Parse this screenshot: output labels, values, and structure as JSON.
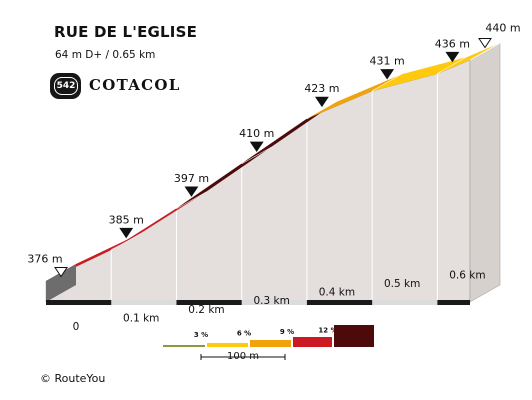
{
  "header": {
    "title": "RUE DE L'EGLISE",
    "subtitle": "64 m D+ / 0.65 km",
    "badge_number": "542",
    "brand": "COTACOL"
  },
  "chart_data": {
    "type": "area",
    "x_unit": "km",
    "y_unit": "m",
    "x_ticks": [
      "0",
      "0.1 km",
      "0.2 km",
      "0.3 km",
      "0.4 km",
      "0.5 km",
      "0.6 km"
    ],
    "x_tick_values": [
      0,
      0.1,
      0.2,
      0.3,
      0.4,
      0.5,
      0.6
    ],
    "xlim": [
      0,
      0.65
    ],
    "ylim": [
      370,
      445
    ],
    "segments": [
      {
        "x_start": 0.0,
        "x_end": 0.1,
        "alt_start": 376,
        "alt_end": 385,
        "color": "#cc1a22"
      },
      {
        "x_start": 0.1,
        "x_end": 0.2,
        "alt_start": 385,
        "alt_end": 397,
        "color": "#cc1a22"
      },
      {
        "x_start": 0.2,
        "x_end": 0.3,
        "alt_start": 397,
        "alt_end": 410,
        "color": "#4d0a0a"
      },
      {
        "x_start": 0.3,
        "x_end": 0.4,
        "alt_start": 410,
        "alt_end": 423,
        "color": "#4d0a0a"
      },
      {
        "x_start": 0.4,
        "x_end": 0.5,
        "alt_start": 423,
        "alt_end": 431,
        "color": "#f0a30a"
      },
      {
        "x_start": 0.5,
        "x_end": 0.6,
        "alt_start": 431,
        "alt_end": 436,
        "color": "#ffc90e"
      },
      {
        "x_start": 0.6,
        "x_end": 0.65,
        "alt_start": 436,
        "alt_end": 440,
        "color": "#ffc90e"
      }
    ],
    "altitude_markers": [
      {
        "x": 0.0,
        "label": "376 m",
        "marker": "start"
      },
      {
        "x": 0.1,
        "label": "385 m",
        "marker": "filled"
      },
      {
        "x": 0.2,
        "label": "397 m",
        "marker": "filled"
      },
      {
        "x": 0.3,
        "label": "410 m",
        "marker": "filled"
      },
      {
        "x": 0.4,
        "label": "423 m",
        "marker": "filled"
      },
      {
        "x": 0.5,
        "label": "431 m",
        "marker": "filled"
      },
      {
        "x": 0.6,
        "label": "436 m",
        "marker": "filled"
      },
      {
        "x": 0.65,
        "label": "440 m",
        "marker": "end"
      }
    ],
    "legend": {
      "gradient_labels": [
        "3 %",
        "6 %",
        "9 %",
        "12 %"
      ],
      "scale_label": "100 m",
      "colors": [
        "#8a9a3a",
        "#ffc90e",
        "#f0a30a",
        "#cc1a22",
        "#4d0a0a"
      ]
    }
  },
  "footer": {
    "copyright": "© RouteYou"
  }
}
